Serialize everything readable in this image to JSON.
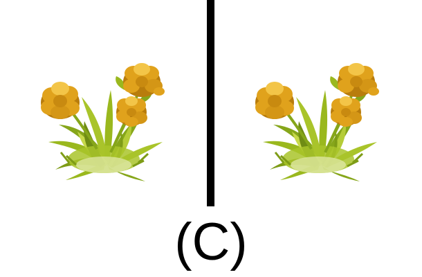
{
  "option_label": "(C)",
  "panels": [
    {
      "subject": "yellow-flower-bush"
    },
    {
      "subject": "yellow-flower-bush"
    }
  ],
  "colors": {
    "background": "#ffffff",
    "divider": "#000000",
    "petal": "#e0a21c",
    "petal_dark": "#b87c0c",
    "petal_light": "#f3c548",
    "leaf": "#9ab81e",
    "leaf_dark": "#6f8c14",
    "leaf_light": "#c7d94a"
  }
}
